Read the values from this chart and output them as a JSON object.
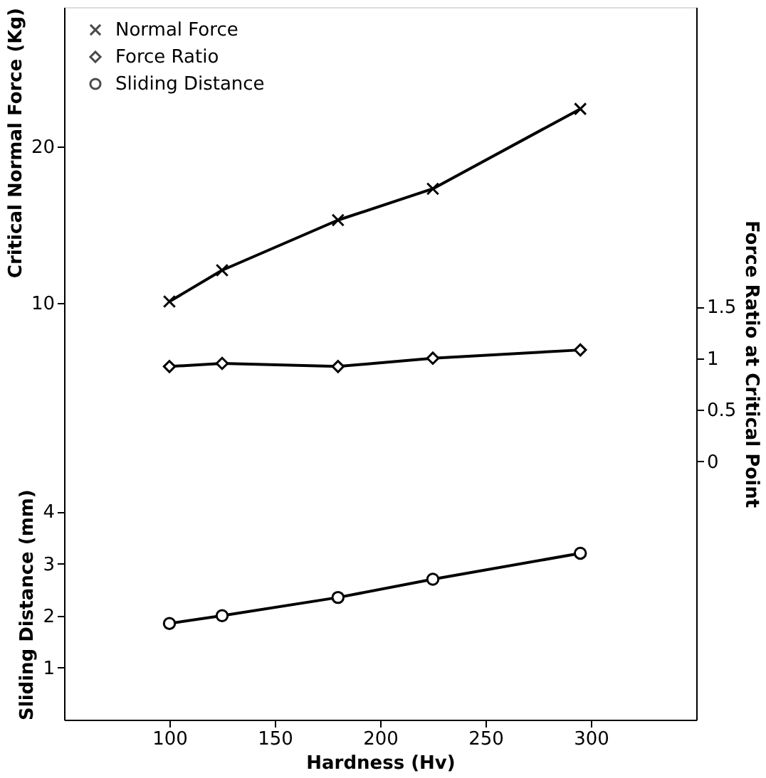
{
  "chart_data": {
    "type": "line",
    "xlabel": "Hardness (Hv)",
    "ylabel": "Sliding Distance (mm)",
    "y2label": "Force Ratio at Critical Point",
    "y3label": "Critical Normal Force (Kg)",
    "x": [
      100,
      125,
      180,
      225,
      295
    ],
    "xlim": [
      50,
      350
    ],
    "xticks": [
      100,
      150,
      200,
      250,
      300
    ],
    "ylim": [
      0,
      13.7
    ],
    "yticks": [
      1,
      2,
      3,
      4
    ],
    "y2lim": [
      -2.5,
      4.4
    ],
    "y2ticks": [
      0,
      0.5,
      1,
      1.5
    ],
    "y3lim": [
      -16.6,
      28.9
    ],
    "y3ticks": [
      10,
      20
    ],
    "series": [
      {
        "name": "Normal Force",
        "color": "#000000",
        "axis": "y3",
        "marker": "cross",
        "values": [
          10.1,
          12.1,
          15.3,
          17.3,
          22.4
        ]
      },
      {
        "name": "Force Ratio",
        "color": "#000000",
        "axis": "y2",
        "marker": "diamond",
        "values": [
          0.92,
          0.95,
          0.92,
          1.0,
          1.08
        ]
      },
      {
        "name": "Sliding Distance",
        "color": "#000000",
        "axis": "y",
        "marker": "circle",
        "values": [
          1.85,
          2.0,
          2.35,
          2.7,
          3.2
        ]
      }
    ],
    "legend": "top left",
    "grid": false,
    "line_style": "solid"
  }
}
